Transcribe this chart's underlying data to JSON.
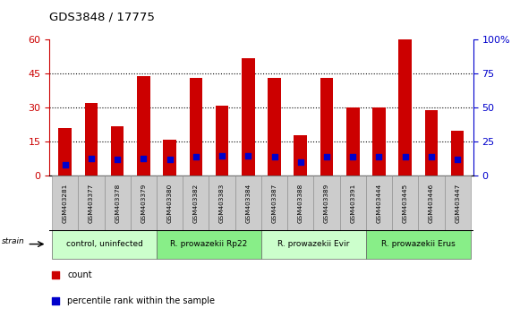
{
  "title": "GDS3848 / 17775",
  "samples": [
    "GSM403281",
    "GSM403377",
    "GSM403378",
    "GSM403379",
    "GSM403380",
    "GSM403382",
    "GSM403383",
    "GSM403384",
    "GSM403387",
    "GSM403388",
    "GSM403389",
    "GSM403391",
    "GSM403444",
    "GSM403445",
    "GSM403446",
    "GSM403447"
  ],
  "red_values": [
    21,
    32,
    22,
    44,
    16,
    43,
    31,
    52,
    43,
    18,
    43,
    30,
    30,
    60,
    29,
    20
  ],
  "blue_values": [
    8,
    13,
    12,
    13,
    12,
    14,
    15,
    15,
    14,
    10,
    14,
    14,
    14,
    14,
    14,
    12
  ],
  "groups": [
    {
      "label": "control, uninfected",
      "start": 0,
      "end": 4,
      "color": "#ccffcc"
    },
    {
      "label": "R. prowazekii Rp22",
      "start": 4,
      "end": 8,
      "color": "#88ee88"
    },
    {
      "label": "R. prowazekii Evir",
      "start": 8,
      "end": 12,
      "color": "#ccffcc"
    },
    {
      "label": "R. prowazekii Erus",
      "start": 12,
      "end": 16,
      "color": "#88ee88"
    }
  ],
  "ylim_left": [
    0,
    60
  ],
  "ylim_right": [
    0,
    100
  ],
  "yticks_left": [
    0,
    15,
    30,
    45,
    60
  ],
  "yticks_right": [
    0,
    25,
    50,
    75,
    100
  ],
  "ylabel_left_color": "#cc0000",
  "ylabel_right_color": "#0000cc",
  "bar_color": "#cc0000",
  "marker_color": "#0000cc",
  "bg_color": "#ffffff",
  "legend_count_label": "count",
  "legend_pct_label": "percentile rank within the sample",
  "strain_label": "strain",
  "tick_bg": "#cccccc",
  "bar_width": 0.5
}
